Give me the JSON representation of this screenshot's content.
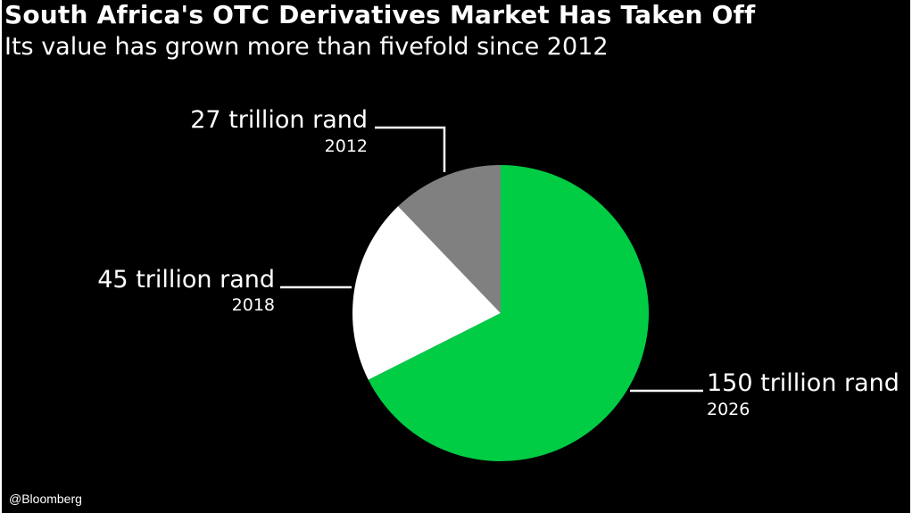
{
  "header": {
    "title": "South Africa's OTC Derivatives Market Has Taken Off",
    "subtitle": "Its value has grown more than fivefold since 2012"
  },
  "source": "@Bloomberg",
  "chart_data": {
    "type": "pie",
    "title": "South Africa's OTC Derivatives Market Has Taken Off",
    "subtitle": "Its value has grown more than fivefold since 2012",
    "slices": [
      {
        "year": "2012",
        "label": "27 trillion rand",
        "value": 27,
        "color": "#808080"
      },
      {
        "year": "2018",
        "label": "45 trillion rand",
        "value": 45,
        "color": "#ffffff"
      },
      {
        "year": "2026",
        "label": "150 trillion rand",
        "value": 150,
        "color": "#00cc44"
      }
    ],
    "direction": "counterclockwise from top"
  },
  "colors": {
    "background": "#000000",
    "text": "#ffffff",
    "leader": "#ffffff"
  }
}
